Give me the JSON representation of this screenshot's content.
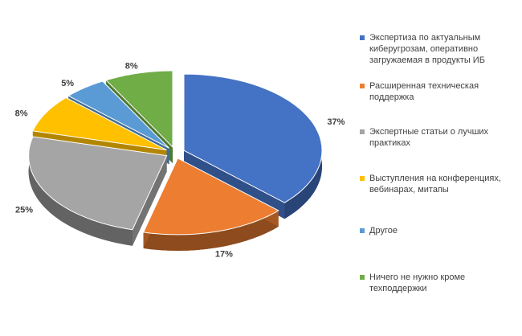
{
  "chart_data": {
    "type": "pie",
    "categories": [
      "Экспертиза по актуальным киберугрозам, оперативно загружаемая в продукты ИБ",
      "Расширенная техническая поддержка",
      "Экспертные статьи о лучших практиках",
      "Выступления на конференциях, вебинарах, митапы",
      "Другое",
      "Ничего не нужно кроме техподдержки"
    ],
    "values": [
      37,
      17,
      25,
      8,
      5,
      8
    ],
    "value_labels": [
      "37%",
      "17%",
      "25%",
      "8%",
      "5%",
      "8%"
    ],
    "colors": [
      "#4472c4",
      "#ed7d31",
      "#a5a5a5",
      "#ffc000",
      "#5b9bd5",
      "#70ad47"
    ],
    "legend": "right"
  }
}
